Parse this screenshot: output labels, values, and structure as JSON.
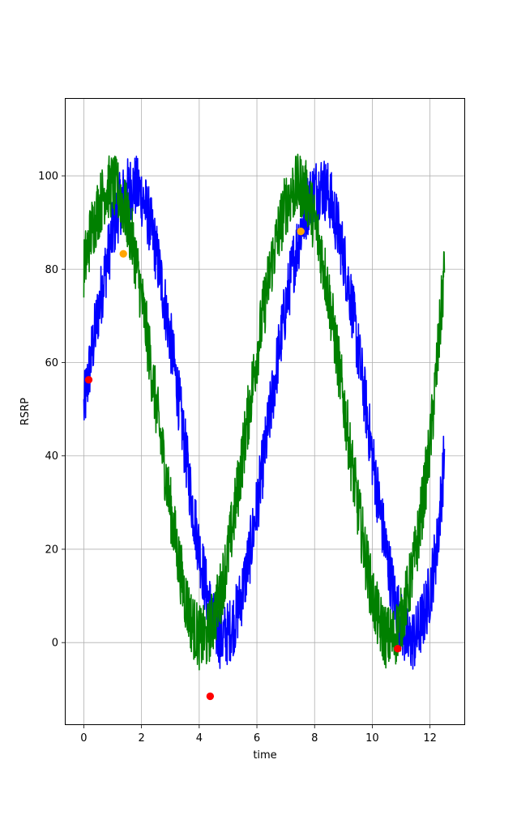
{
  "chart_data": {
    "type": "line",
    "title": "",
    "xlabel": "time",
    "ylabel": "RSRP",
    "xlim": [
      -0.63,
      13.19
    ],
    "ylim": [
      -17.5,
      116.5
    ],
    "x_ticks": [
      0,
      2,
      4,
      6,
      8,
      10,
      12
    ],
    "y_ticks": [
      0,
      20,
      40,
      60,
      80,
      100
    ],
    "grid": true,
    "legend": "none",
    "noise_amplitude": 7,
    "series": [
      {
        "color": "#0000ff",
        "line_width": 1.6,
        "x": [
          0,
          0.25,
          0.5,
          0.75,
          1.0,
          1.25,
          1.5,
          1.75,
          2.0,
          2.25,
          2.5,
          2.75,
          3.0,
          3.25,
          3.5,
          3.75,
          4.0,
          4.25,
          4.5,
          4.75,
          5.0,
          5.25,
          5.5,
          5.75,
          6.0,
          6.25,
          6.5,
          6.75,
          7.0,
          7.25,
          7.5,
          7.75,
          8.0,
          8.25,
          8.5,
          8.75,
          9.0,
          9.25,
          9.5,
          9.75,
          10.0,
          10.25,
          10.5,
          10.75,
          11.0,
          11.25,
          11.5,
          11.75,
          12.0,
          12.25,
          12.5
        ],
        "y": [
          50,
          61,
          71,
          80,
          88,
          94,
          97,
          98,
          96,
          91,
          84,
          75,
          65,
          54,
          42,
          30,
          20,
          11,
          4,
          1,
          2,
          5,
          11,
          19,
          29,
          40,
          51,
          62,
          72,
          81,
          88,
          94,
          97,
          98,
          96,
          90,
          83,
          74,
          63,
          52,
          40,
          29,
          19,
          10,
          4,
          0,
          1,
          5,
          11,
          21,
          40
        ]
      },
      {
        "color": "#008000",
        "line_width": 1.6,
        "x": [
          0,
          0.25,
          0.5,
          0.75,
          1.0,
          1.25,
          1.5,
          1.75,
          2.0,
          2.25,
          2.5,
          2.75,
          3.0,
          3.25,
          3.5,
          3.75,
          4.0,
          4.25,
          4.5,
          4.75,
          5.0,
          5.25,
          5.5,
          5.75,
          6.0,
          6.25,
          6.5,
          6.75,
          7.0,
          7.25,
          7.5,
          7.75,
          8.0,
          8.25,
          8.5,
          8.75,
          9.0,
          9.25,
          9.5,
          9.75,
          10.0,
          10.25,
          10.5,
          10.75,
          11.0,
          11.25,
          11.5,
          11.75,
          12.0,
          12.25,
          12.5
        ],
        "y": [
          80,
          88,
          93,
          97,
          98,
          96,
          91,
          84,
          74,
          63,
          51,
          40,
          29,
          19,
          10,
          4,
          1,
          1,
          5,
          11,
          19,
          29,
          40,
          51,
          62,
          72,
          81,
          88,
          94,
          97,
          98,
          96,
          90,
          83,
          74,
          63,
          52,
          40,
          29,
          19,
          10,
          4,
          1,
          1,
          5,
          11,
          19,
          30,
          42,
          60,
          80
        ]
      }
    ],
    "markers": [
      {
        "x": 0.17,
        "y": 56.3,
        "color": "#ff0000"
      },
      {
        "x": 4.38,
        "y": -11.5,
        "color": "#ff0000"
      },
      {
        "x": 10.88,
        "y": -1.3,
        "color": "#ff0000"
      },
      {
        "x": 1.37,
        "y": 83.3,
        "color": "#ffa500"
      },
      {
        "x": 7.52,
        "y": 88.1,
        "color": "#ffa500"
      }
    ]
  }
}
